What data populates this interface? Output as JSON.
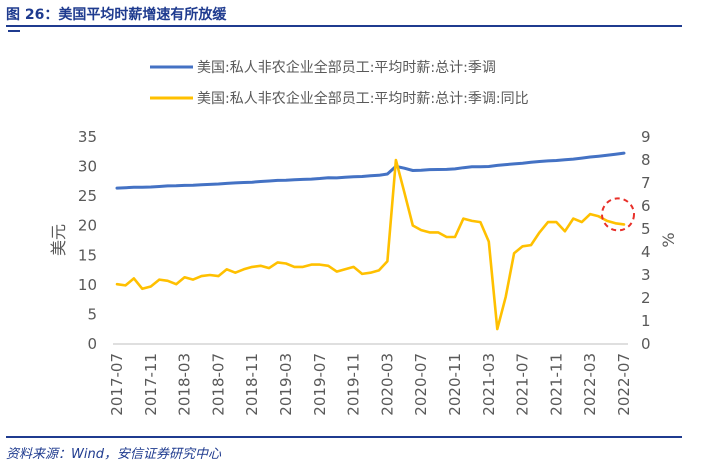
{
  "figure": {
    "title": "图 26：美国平均时薪增速有所放缓",
    "source": "资料来源：Wind，安信证券研究中心"
  },
  "colors": {
    "series1": "#4472c4",
    "series2": "#ffc000",
    "highlight_circle": "#e8302a",
    "accent": "#1f3b8f"
  },
  "chart_data": {
    "type": "line",
    "x": [
      "2017-07",
      "2017-08",
      "2017-09",
      "2017-10",
      "2017-11",
      "2017-12",
      "2018-01",
      "2018-02",
      "2018-03",
      "2018-04",
      "2018-05",
      "2018-06",
      "2018-07",
      "2018-08",
      "2018-09",
      "2018-10",
      "2018-11",
      "2018-12",
      "2019-01",
      "2019-02",
      "2019-03",
      "2019-04",
      "2019-05",
      "2019-06",
      "2019-07",
      "2019-08",
      "2019-09",
      "2019-10",
      "2019-11",
      "2019-12",
      "2020-01",
      "2020-02",
      "2020-03",
      "2020-04",
      "2020-05",
      "2020-06",
      "2020-07",
      "2020-08",
      "2020-09",
      "2020-10",
      "2020-11",
      "2020-12",
      "2021-01",
      "2021-02",
      "2021-03",
      "2021-04",
      "2021-05",
      "2021-06",
      "2021-07",
      "2021-08",
      "2021-09",
      "2021-10",
      "2021-11",
      "2021-12",
      "2022-01",
      "2022-02",
      "2022-03",
      "2022-04",
      "2022-05",
      "2022-06",
      "2022-07"
    ],
    "x_tick_labels": [
      "2017-07",
      "2017-11",
      "2018-03",
      "2018-07",
      "2018-11",
      "2019-03",
      "2019-07",
      "2019-11",
      "2020-03",
      "2020-07",
      "2020-11",
      "2021-03",
      "2021-07",
      "2021-11",
      "2022-03",
      "2022-07"
    ],
    "series": [
      {
        "name": "美国:私人非农企业全部员工:平均时薪:总计:季调",
        "axis": "left",
        "values": [
          26.36,
          26.42,
          26.5,
          26.5,
          26.55,
          26.63,
          26.74,
          26.75,
          26.82,
          26.84,
          26.92,
          26.98,
          27.05,
          27.16,
          27.24,
          27.3,
          27.35,
          27.48,
          27.56,
          27.66,
          27.7,
          27.77,
          27.83,
          27.89,
          27.98,
          28.11,
          28.09,
          28.18,
          28.29,
          28.32,
          28.44,
          28.52,
          28.75,
          30.03,
          29.73,
          29.34,
          29.38,
          29.48,
          29.5,
          29.53,
          29.61,
          29.81,
          29.96,
          29.96,
          30.01,
          30.2,
          30.33,
          30.45,
          30.57,
          30.72,
          30.85,
          30.96,
          31.03,
          31.15,
          31.26,
          31.43,
          31.61,
          31.76,
          31.91,
          32.08,
          32.27
        ]
      },
      {
        "name": "美国:私人非农企业全部员工:平均时薪:总计:季调:同比",
        "axis": "right",
        "values": [
          2.6,
          2.55,
          2.85,
          2.4,
          2.5,
          2.8,
          2.75,
          2.6,
          2.9,
          2.8,
          2.95,
          3.0,
          2.95,
          3.25,
          3.1,
          3.25,
          3.35,
          3.4,
          3.3,
          3.55,
          3.5,
          3.35,
          3.35,
          3.45,
          3.45,
          3.4,
          3.15,
          3.25,
          3.35,
          3.05,
          3.1,
          3.2,
          3.6,
          8.0,
          6.6,
          5.15,
          4.95,
          4.85,
          4.85,
          4.65,
          4.65,
          5.45,
          5.35,
          5.3,
          4.45,
          0.65,
          2.05,
          3.95,
          4.25,
          4.3,
          4.85,
          5.3,
          5.3,
          4.9,
          5.45,
          5.3,
          5.65,
          5.55,
          5.35,
          5.25,
          5.2
        ]
      }
    ],
    "ylabel_left": "美元",
    "ylabel_right": "%",
    "ylim_left": [
      0,
      35
    ],
    "yticks_left": [
      0,
      5,
      10,
      15,
      20,
      25,
      30,
      35
    ],
    "ylim_right": [
      0,
      9
    ],
    "yticks_right": [
      0,
      1,
      2,
      3,
      4,
      5,
      6,
      7,
      8,
      9
    ],
    "legend": "top",
    "grid": false,
    "highlight": {
      "series": 1,
      "x": "2022-07",
      "shape": "dashed-circle"
    }
  }
}
